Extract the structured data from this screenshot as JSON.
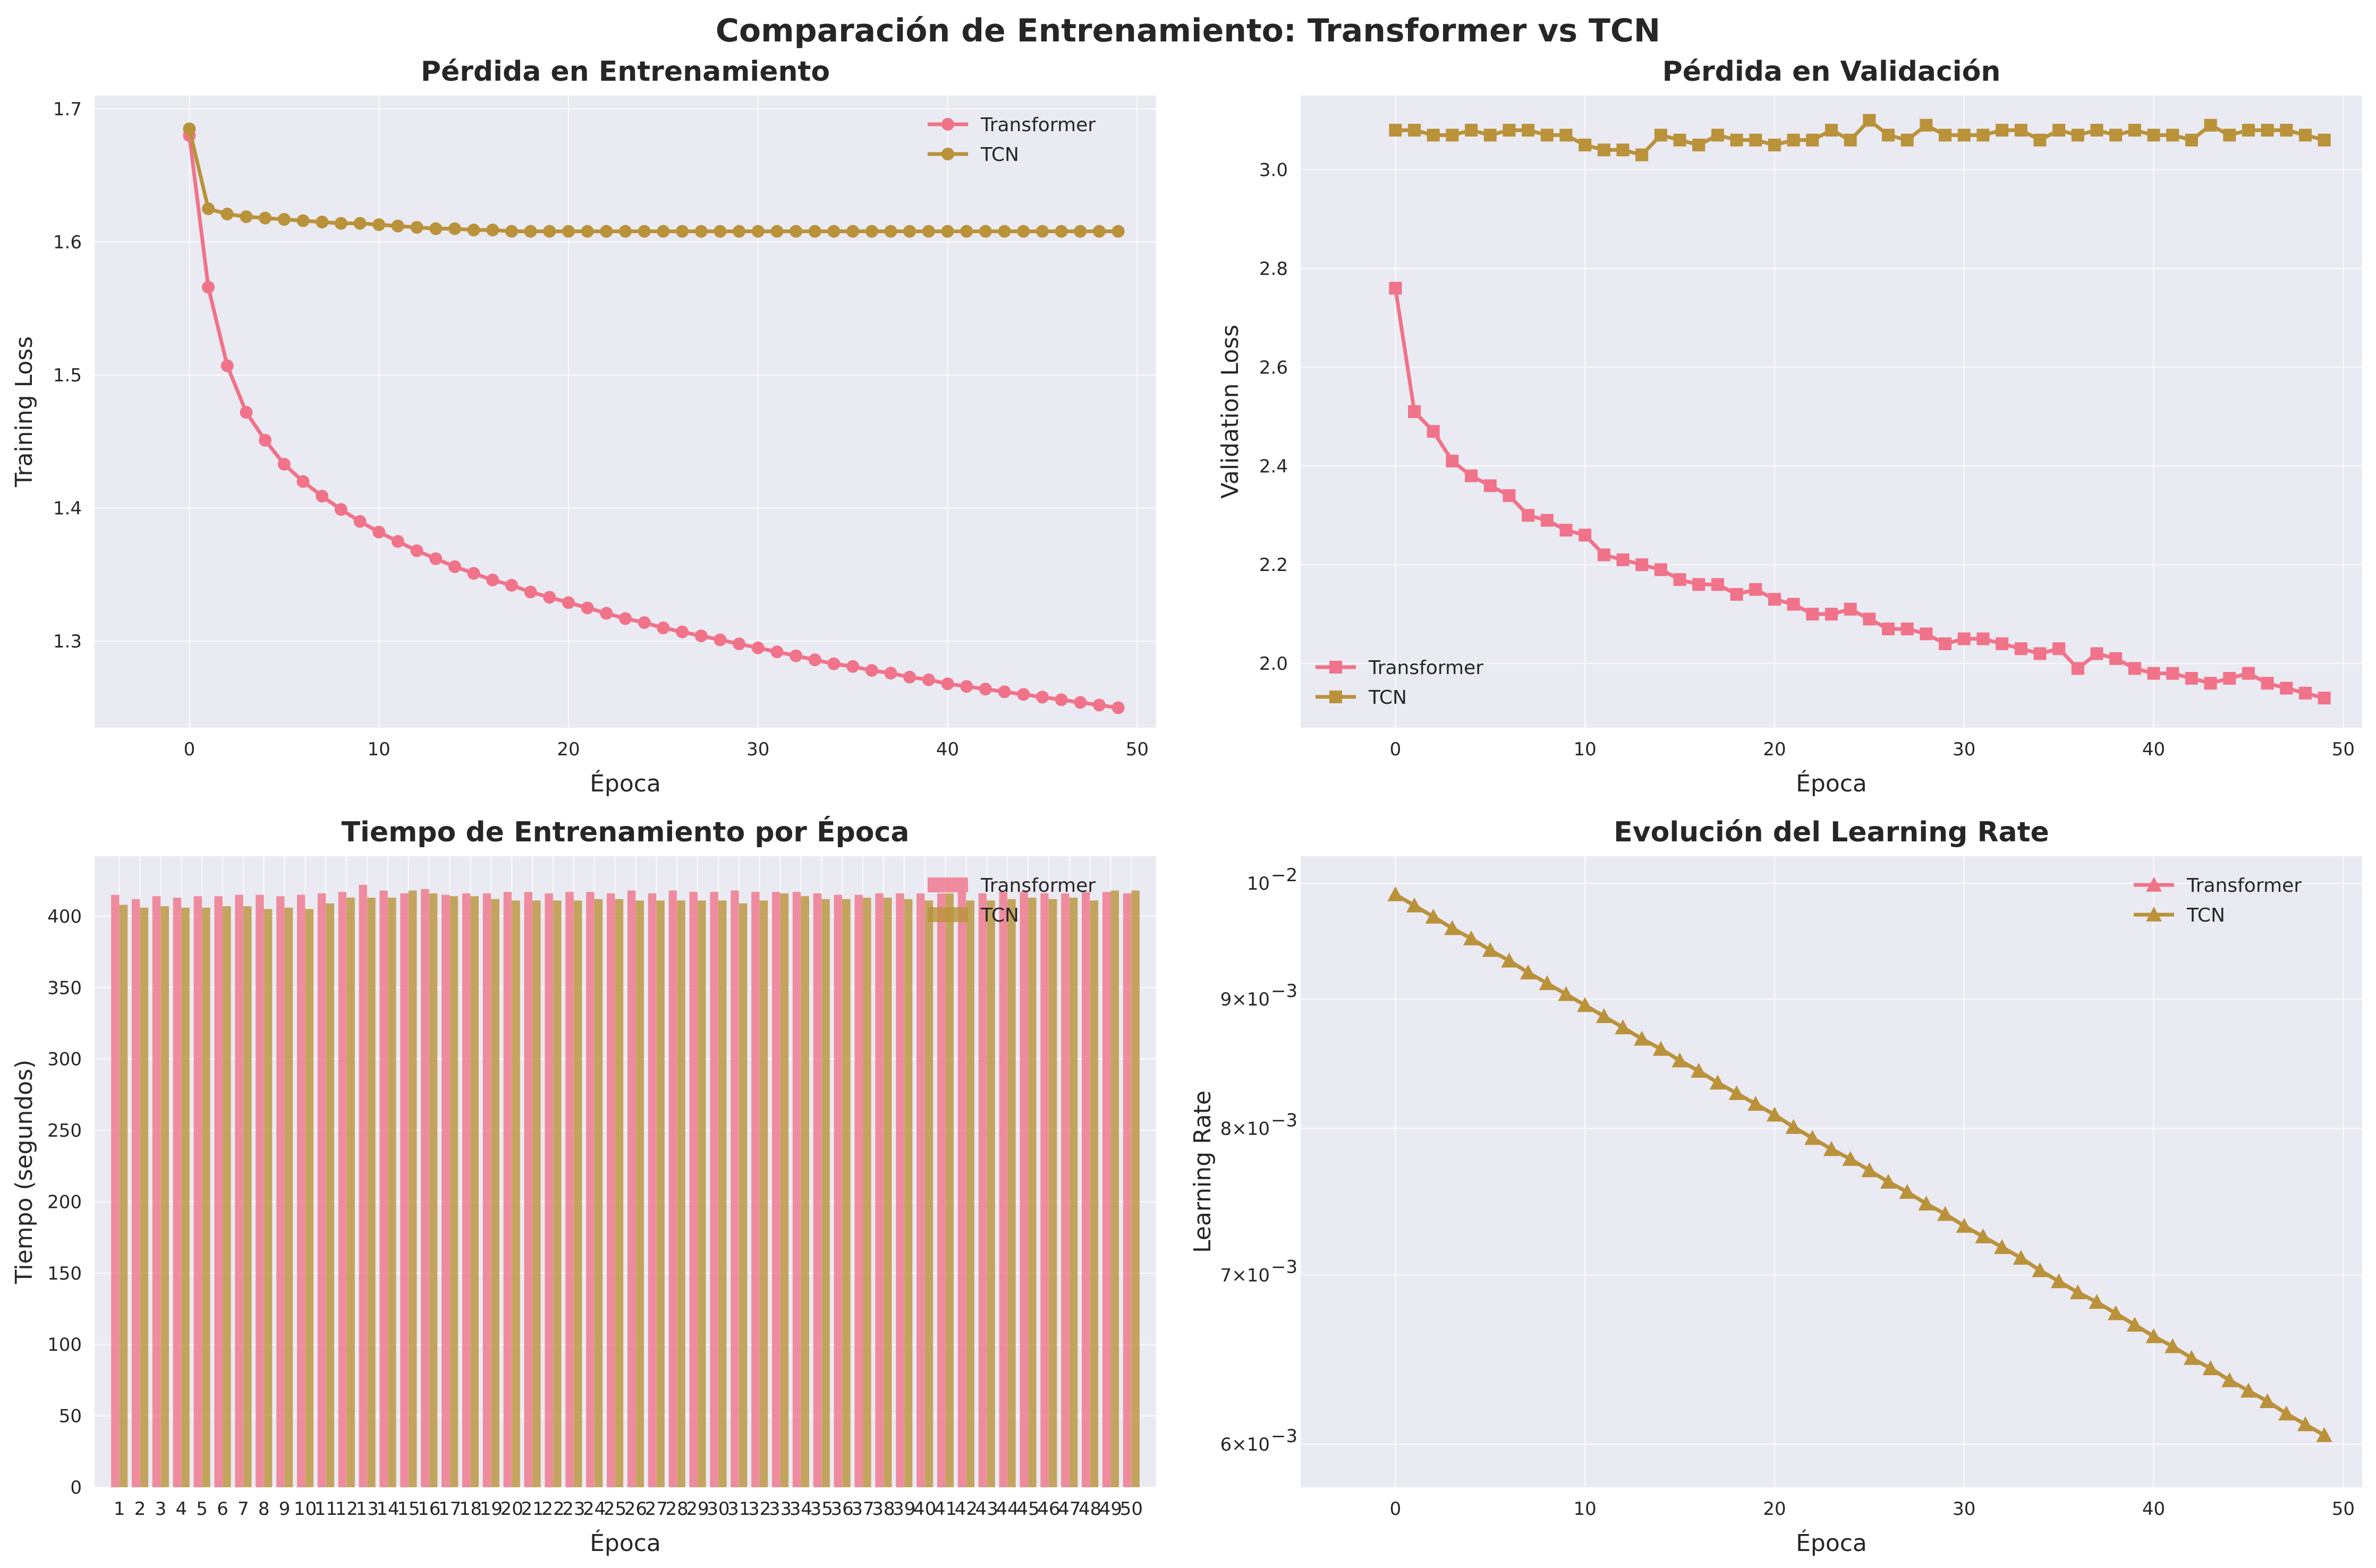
{
  "title": "Comparación de Entrenamiento: Transformer vs TCN",
  "colors": {
    "transformer": "#f0738a",
    "tcn": "#b9923a"
  },
  "chart_data": [
    {
      "type": "line",
      "title": "Pérdida en Entrenamiento",
      "xlabel": "Época",
      "ylabel": "Training Loss",
      "xlim": [
        -5,
        51
      ],
      "ylim": [
        1.235,
        1.71
      ],
      "xticks": [
        0,
        10,
        20,
        30,
        40,
        50
      ],
      "yticks": [
        1.3,
        1.4,
        1.5,
        1.6,
        1.7
      ],
      "ytick_labels": [
        "1.3",
        "1.4",
        "1.5",
        "1.6",
        "1.7"
      ],
      "marker": "circle",
      "legend": "upper-right",
      "grid": true,
      "x": [
        0,
        1,
        2,
        3,
        4,
        5,
        6,
        7,
        8,
        9,
        10,
        11,
        12,
        13,
        14,
        15,
        16,
        17,
        18,
        19,
        20,
        21,
        22,
        23,
        24,
        25,
        26,
        27,
        28,
        29,
        30,
        31,
        32,
        33,
        34,
        35,
        36,
        37,
        38,
        39,
        40,
        41,
        42,
        43,
        44,
        45,
        46,
        47,
        48,
        49
      ],
      "series": [
        {
          "name": "Transformer",
          "values": [
            1.68,
            1.566,
            1.507,
            1.472,
            1.451,
            1.433,
            1.42,
            1.409,
            1.399,
            1.39,
            1.382,
            1.375,
            1.368,
            1.362,
            1.356,
            1.351,
            1.346,
            1.342,
            1.337,
            1.333,
            1.329,
            1.325,
            1.321,
            1.317,
            1.314,
            1.31,
            1.307,
            1.304,
            1.301,
            1.298,
            1.295,
            1.292,
            1.289,
            1.286,
            1.283,
            1.281,
            1.278,
            1.276,
            1.273,
            1.271,
            1.268,
            1.266,
            1.264,
            1.262,
            1.26,
            1.258,
            1.256,
            1.254,
            1.252,
            1.25
          ]
        },
        {
          "name": "TCN",
          "values": [
            1.685,
            1.625,
            1.621,
            1.619,
            1.618,
            1.617,
            1.616,
            1.615,
            1.614,
            1.614,
            1.613,
            1.612,
            1.611,
            1.61,
            1.61,
            1.609,
            1.609,
            1.608,
            1.608,
            1.608,
            1.608,
            1.608,
            1.608,
            1.608,
            1.608,
            1.608,
            1.608,
            1.608,
            1.608,
            1.608,
            1.608,
            1.608,
            1.608,
            1.608,
            1.608,
            1.608,
            1.608,
            1.608,
            1.608,
            1.608,
            1.608,
            1.608,
            1.608,
            1.608,
            1.608,
            1.608,
            1.608,
            1.608,
            1.608,
            1.608
          ]
        }
      ]
    },
    {
      "type": "line",
      "title": "Pérdida en Validación",
      "xlabel": "Época",
      "ylabel": "Validation Loss",
      "xlim": [
        -5,
        51
      ],
      "ylim": [
        1.87,
        3.15
      ],
      "xticks": [
        0,
        10,
        20,
        30,
        40,
        50
      ],
      "yticks": [
        2.0,
        2.2,
        2.4,
        2.6,
        2.8,
        3.0
      ],
      "ytick_labels": [
        "2.0",
        "2.2",
        "2.4",
        "2.6",
        "2.8",
        "3.0"
      ],
      "marker": "square",
      "legend": "lower-left",
      "grid": true,
      "x": [
        0,
        1,
        2,
        3,
        4,
        5,
        6,
        7,
        8,
        9,
        10,
        11,
        12,
        13,
        14,
        15,
        16,
        17,
        18,
        19,
        20,
        21,
        22,
        23,
        24,
        25,
        26,
        27,
        28,
        29,
        30,
        31,
        32,
        33,
        34,
        35,
        36,
        37,
        38,
        39,
        40,
        41,
        42,
        43,
        44,
        45,
        46,
        47,
        48,
        49
      ],
      "series": [
        {
          "name": "Transformer",
          "values": [
            2.76,
            2.51,
            2.47,
            2.41,
            2.38,
            2.36,
            2.34,
            2.3,
            2.29,
            2.27,
            2.26,
            2.22,
            2.21,
            2.2,
            2.19,
            2.17,
            2.16,
            2.16,
            2.14,
            2.15,
            2.13,
            2.12,
            2.1,
            2.1,
            2.11,
            2.09,
            2.07,
            2.07,
            2.06,
            2.04,
            2.05,
            2.05,
            2.04,
            2.03,
            2.02,
            2.03,
            1.99,
            2.02,
            2.01,
            1.99,
            1.98,
            1.98,
            1.97,
            1.96,
            1.97,
            1.98,
            1.96,
            1.95,
            1.94,
            1.93
          ]
        },
        {
          "name": "TCN",
          "values": [
            3.08,
            3.08,
            3.07,
            3.07,
            3.08,
            3.07,
            3.08,
            3.08,
            3.07,
            3.07,
            3.05,
            3.04,
            3.04,
            3.03,
            3.07,
            3.06,
            3.05,
            3.07,
            3.06,
            3.06,
            3.05,
            3.06,
            3.06,
            3.08,
            3.06,
            3.1,
            3.07,
            3.06,
            3.09,
            3.07,
            3.07,
            3.07,
            3.08,
            3.08,
            3.06,
            3.08,
            3.07,
            3.08,
            3.07,
            3.08,
            3.07,
            3.07,
            3.06,
            3.09,
            3.07,
            3.08,
            3.08,
            3.08,
            3.07,
            3.06
          ]
        }
      ]
    },
    {
      "type": "bar",
      "title": "Tiempo de Entrenamiento por Época",
      "xlabel": "Época",
      "ylabel": "Tiempo (segundos)",
      "ylim": [
        0,
        442
      ],
      "yticks": [
        0,
        50,
        100,
        150,
        200,
        250,
        300,
        350,
        400
      ],
      "legend": "upper-right",
      "grid": true,
      "categories": [
        "1",
        "2",
        "3",
        "4",
        "5",
        "6",
        "7",
        "8",
        "9",
        "10",
        "11",
        "12",
        "13",
        "14",
        "15",
        "16",
        "17",
        "18",
        "19",
        "20",
        "21",
        "22",
        "23",
        "24",
        "25",
        "26",
        "27",
        "28",
        "29",
        "30",
        "31",
        "32",
        "33",
        "34",
        "35",
        "36",
        "37",
        "38",
        "39",
        "40",
        "41",
        "42",
        "43",
        "44",
        "45",
        "46",
        "47",
        "48",
        "49",
        "50"
      ],
      "series": [
        {
          "name": "Transformer",
          "values": [
            415,
            412,
            414,
            413,
            414,
            414,
            415,
            415,
            414,
            415,
            416,
            417,
            422,
            418,
            416,
            419,
            415,
            416,
            416,
            417,
            417,
            416,
            417,
            417,
            416,
            418,
            416,
            418,
            417,
            417,
            418,
            417,
            417,
            417,
            416,
            415,
            415,
            416,
            416,
            416,
            416,
            417,
            416,
            417,
            417,
            416,
            416,
            417,
            417,
            416
          ]
        },
        {
          "name": "TCN",
          "values": [
            408,
            406,
            407,
            406,
            406,
            407,
            407,
            405,
            406,
            405,
            409,
            413,
            413,
            413,
            418,
            416,
            414,
            414,
            412,
            411,
            411,
            411,
            411,
            412,
            412,
            411,
            411,
            411,
            411,
            411,
            409,
            411,
            416,
            414,
            412,
            412,
            413,
            413,
            412,
            411,
            416,
            411,
            411,
            412,
            413,
            412,
            413,
            411,
            418,
            418
          ]
        }
      ]
    },
    {
      "type": "line",
      "title": "Evolución del Learning Rate",
      "xlabel": "Época",
      "ylabel": "Learning Rate",
      "yscale": "log",
      "xlim": [
        -5,
        51
      ],
      "ylim": [
        0.00577,
        0.01025
      ],
      "xticks": [
        0,
        10,
        20,
        30,
        40,
        50
      ],
      "yticks": [
        0.006,
        0.007,
        0.008,
        0.009,
        0.01
      ],
      "ytick_labels": [
        {
          "base": "6×10",
          "exp": "−3"
        },
        {
          "base": "7×10",
          "exp": "−3"
        },
        {
          "base": "8×10",
          "exp": "−3"
        },
        {
          "base": "9×10",
          "exp": "−3"
        },
        {
          "base": "10",
          "exp": "−2"
        }
      ],
      "marker": "triangle",
      "legend": "upper-right",
      "grid": true,
      "x": [
        0,
        1,
        2,
        3,
        4,
        5,
        6,
        7,
        8,
        9,
        10,
        11,
        12,
        13,
        14,
        15,
        16,
        17,
        18,
        19,
        20,
        21,
        22,
        23,
        24,
        25,
        26,
        27,
        28,
        29,
        30,
        31,
        32,
        33,
        34,
        35,
        36,
        37,
        38,
        39,
        40,
        41,
        42,
        43,
        44,
        45,
        46,
        47,
        48,
        49
      ],
      "series": [
        {
          "name": "Transformer",
          "values": [
            0.0099,
            0.0098,
            0.0097,
            0.0096,
            0.00951,
            0.00941,
            0.00932,
            0.00922,
            0.00913,
            0.00904,
            0.00895,
            0.00886,
            0.00877,
            0.00868,
            0.0086,
            0.00851,
            0.00843,
            0.00834,
            0.00826,
            0.00818,
            0.0081,
            0.00801,
            0.00793,
            0.00785,
            0.00778,
            0.0077,
            0.00762,
            0.00755,
            0.00747,
            0.0074,
            0.00732,
            0.00725,
            0.00718,
            0.00711,
            0.00703,
            0.00696,
            0.00689,
            0.00683,
            0.00676,
            0.00669,
            0.00662,
            0.00656,
            0.00649,
            0.00643,
            0.00636,
            0.0063,
            0.00624,
            0.00617,
            0.00611,
            0.00605
          ]
        },
        {
          "name": "TCN",
          "values": [
            0.0099,
            0.0098,
            0.0097,
            0.0096,
            0.00951,
            0.00941,
            0.00932,
            0.00922,
            0.00913,
            0.00904,
            0.00895,
            0.00886,
            0.00877,
            0.00868,
            0.0086,
            0.00851,
            0.00843,
            0.00834,
            0.00826,
            0.00818,
            0.0081,
            0.00801,
            0.00793,
            0.00785,
            0.00778,
            0.0077,
            0.00762,
            0.00755,
            0.00747,
            0.0074,
            0.00732,
            0.00725,
            0.00718,
            0.00711,
            0.00703,
            0.00696,
            0.00689,
            0.00683,
            0.00676,
            0.00669,
            0.00662,
            0.00656,
            0.00649,
            0.00643,
            0.00636,
            0.0063,
            0.00624,
            0.00617,
            0.00611,
            0.00605
          ]
        }
      ]
    }
  ]
}
